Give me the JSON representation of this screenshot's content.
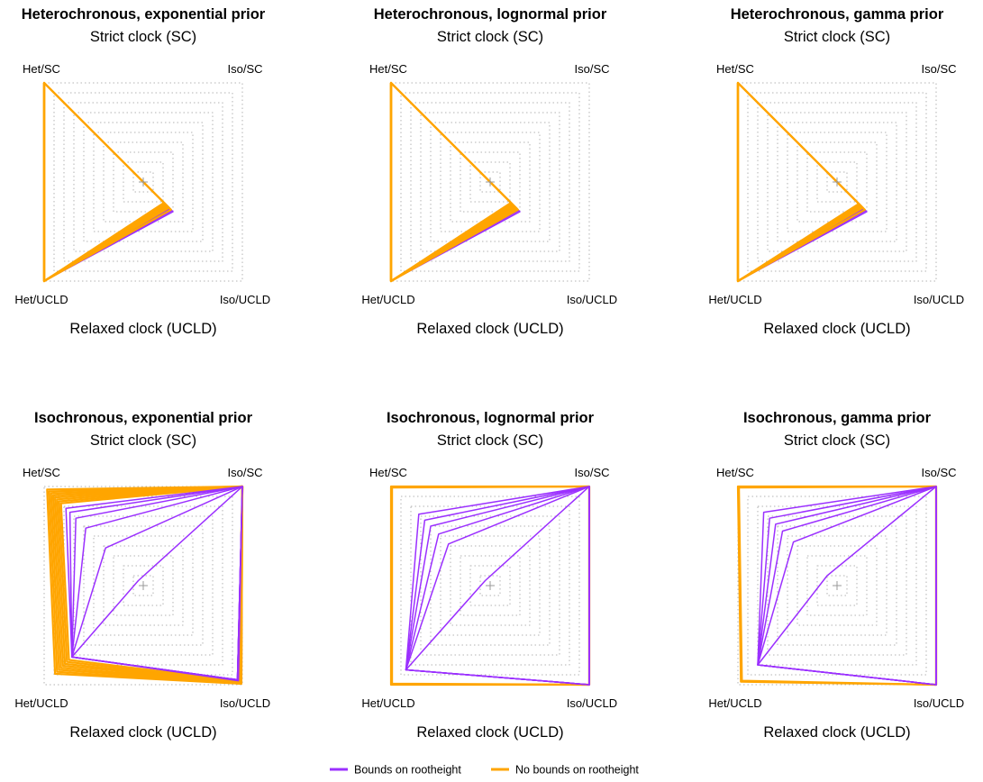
{
  "chart_data": {
    "type": "radar-grid",
    "panels": [
      {
        "title": "Heterochronous, exponential prior",
        "subtitle": "Strict clock (SC)",
        "xlabel": "Relaxed clock (UCLD)",
        "corner_labels": {
          "top_left": "Het/SC",
          "top_right": "Iso/SC",
          "bottom_left": "Het/UCLD",
          "bottom_right": "Iso/UCLD"
        },
        "axes_order": [
          "Het/SC",
          "Iso/SC",
          "Iso/UCLD",
          "Het/UCLD"
        ],
        "range": [
          0,
          1
        ],
        "grid_levels": 10,
        "series": [
          {
            "group": "bounds",
            "values": [
              1.0,
              0.0,
              0.3,
              1.0
            ]
          },
          {
            "group": "bounds",
            "values": [
              1.0,
              0.0,
              0.29,
              1.0
            ]
          },
          {
            "group": "bounds",
            "values": [
              1.0,
              0.0,
              0.27,
              1.0
            ]
          },
          {
            "group": "bounds",
            "values": [
              1.0,
              0.0,
              0.26,
              1.0
            ]
          },
          {
            "group": "bounds",
            "values": [
              1.0,
              0.0,
              0.25,
              1.0
            ]
          },
          {
            "group": "bounds",
            "values": [
              1.0,
              0.0,
              0.24,
              1.0
            ]
          },
          {
            "group": "no_bounds",
            "values": [
              1.0,
              0.0,
              0.28,
              1.0
            ]
          },
          {
            "group": "no_bounds",
            "values": [
              1.0,
              0.0,
              0.26,
              1.0
            ]
          },
          {
            "group": "no_bounds",
            "values": [
              1.0,
              0.0,
              0.25,
              1.0
            ]
          },
          {
            "group": "no_bounds",
            "values": [
              1.0,
              0.0,
              0.24,
              1.0
            ]
          },
          {
            "group": "no_bounds",
            "values": [
              1.0,
              0.0,
              0.23,
              1.0
            ]
          },
          {
            "group": "no_bounds",
            "values": [
              1.0,
              0.0,
              0.22,
              1.0
            ]
          },
          {
            "group": "no_bounds",
            "values": [
              1.0,
              0.0,
              0.21,
              1.0
            ]
          }
        ]
      },
      {
        "title": "Heterochronous, lognormal prior",
        "subtitle": "Strict clock (SC)",
        "xlabel": "Relaxed clock (UCLD)",
        "corner_labels": {
          "top_left": "Het/SC",
          "top_right": "Iso/SC",
          "bottom_left": "Het/UCLD",
          "bottom_right": "Iso/UCLD"
        },
        "axes_order": [
          "Het/SC",
          "Iso/SC",
          "Iso/UCLD",
          "Het/UCLD"
        ],
        "range": [
          0,
          1
        ],
        "grid_levels": 10,
        "series": [
          {
            "group": "bounds",
            "values": [
              1.0,
              0.0,
              0.3,
              1.0
            ]
          },
          {
            "group": "bounds",
            "values": [
              1.0,
              0.0,
              0.29,
              1.0
            ]
          },
          {
            "group": "bounds",
            "values": [
              1.0,
              0.0,
              0.28,
              1.0
            ]
          },
          {
            "group": "bounds",
            "values": [
              1.0,
              0.0,
              0.27,
              1.0
            ]
          },
          {
            "group": "bounds",
            "values": [
              1.0,
              0.0,
              0.26,
              1.0
            ]
          },
          {
            "group": "no_bounds",
            "values": [
              1.0,
              0.0,
              0.28,
              1.0
            ]
          },
          {
            "group": "no_bounds",
            "values": [
              1.0,
              0.0,
              0.27,
              1.0
            ]
          },
          {
            "group": "no_bounds",
            "values": [
              1.0,
              0.0,
              0.26,
              1.0
            ]
          },
          {
            "group": "no_bounds",
            "values": [
              1.0,
              0.0,
              0.25,
              1.0
            ]
          },
          {
            "group": "no_bounds",
            "values": [
              1.0,
              0.0,
              0.24,
              1.0
            ]
          },
          {
            "group": "no_bounds",
            "values": [
              1.0,
              0.0,
              0.23,
              1.0
            ]
          },
          {
            "group": "no_bounds",
            "values": [
              1.0,
              0.0,
              0.22,
              1.0
            ]
          },
          {
            "group": "no_bounds",
            "values": [
              1.0,
              0.0,
              0.21,
              1.0
            ]
          }
        ]
      },
      {
        "title": "Heterochronous, gamma prior",
        "subtitle": "Strict clock (SC)",
        "xlabel": "Relaxed clock (UCLD)",
        "corner_labels": {
          "top_left": "Het/SC",
          "top_right": "Iso/SC",
          "bottom_left": "Het/UCLD",
          "bottom_right": "Iso/UCLD"
        },
        "axes_order": [
          "Het/SC",
          "Iso/SC",
          "Iso/UCLD",
          "Het/UCLD"
        ],
        "range": [
          0,
          1
        ],
        "grid_levels": 10,
        "series": [
          {
            "group": "bounds",
            "values": [
              1.0,
              0.0,
              0.3,
              1.0
            ]
          },
          {
            "group": "bounds",
            "values": [
              1.0,
              0.0,
              0.29,
              1.0
            ]
          },
          {
            "group": "bounds",
            "values": [
              1.0,
              0.0,
              0.28,
              1.0
            ]
          },
          {
            "group": "bounds",
            "values": [
              1.0,
              0.0,
              0.27,
              1.0
            ]
          },
          {
            "group": "bounds",
            "values": [
              1.0,
              0.0,
              0.26,
              1.0
            ]
          },
          {
            "group": "bounds",
            "values": [
              1.0,
              0.0,
              0.25,
              1.0
            ]
          },
          {
            "group": "no_bounds",
            "values": [
              1.0,
              0.0,
              0.28,
              1.0
            ]
          },
          {
            "group": "no_bounds",
            "values": [
              1.0,
              0.0,
              0.26,
              1.0
            ]
          },
          {
            "group": "no_bounds",
            "values": [
              1.0,
              0.0,
              0.25,
              1.0
            ]
          },
          {
            "group": "no_bounds",
            "values": [
              1.0,
              0.0,
              0.24,
              1.0
            ]
          },
          {
            "group": "no_bounds",
            "values": [
              1.0,
              0.0,
              0.23,
              1.0
            ]
          },
          {
            "group": "no_bounds",
            "values": [
              1.0,
              0.0,
              0.22,
              1.0
            ]
          }
        ]
      },
      {
        "title": "Isochronous, exponential prior",
        "subtitle": "Strict clock (SC)",
        "xlabel": "Relaxed clock (UCLD)",
        "corner_labels": {
          "top_left": "Het/SC",
          "top_right": "Iso/SC",
          "bottom_left": "Het/UCLD",
          "bottom_right": "Iso/UCLD"
        },
        "axes_order": [
          "Het/SC",
          "Iso/SC",
          "Iso/UCLD",
          "Het/UCLD"
        ],
        "range": [
          0,
          1
        ],
        "grid_levels": 10,
        "series": [
          {
            "group": "no_bounds",
            "values": [
              0.97,
              1.0,
              0.99,
              0.89
            ]
          },
          {
            "group": "no_bounds",
            "values": [
              0.95,
              1.0,
              0.99,
              0.87
            ]
          },
          {
            "group": "no_bounds",
            "values": [
              0.93,
              1.0,
              0.98,
              0.85
            ]
          },
          {
            "group": "no_bounds",
            "values": [
              0.91,
              1.0,
              0.98,
              0.83
            ]
          },
          {
            "group": "no_bounds",
            "values": [
              0.89,
              1.0,
              0.97,
              0.81
            ]
          },
          {
            "group": "no_bounds",
            "values": [
              0.87,
              1.0,
              0.97,
              0.79
            ]
          },
          {
            "group": "no_bounds",
            "values": [
              0.85,
              1.0,
              0.96,
              0.77
            ]
          },
          {
            "group": "no_bounds",
            "values": [
              0.83,
              1.0,
              0.96,
              0.75
            ]
          },
          {
            "group": "bounds",
            "values": [
              0.78,
              1.0,
              0.96,
              0.72
            ]
          },
          {
            "group": "bounds",
            "values": [
              0.74,
              1.0,
              0.95,
              0.72
            ]
          },
          {
            "group": "bounds",
            "values": [
              0.68,
              1.0,
              0.95,
              0.72
            ]
          },
          {
            "group": "bounds",
            "values": [
              0.58,
              1.0,
              0.95,
              0.72
            ]
          },
          {
            "group": "bounds",
            "values": [
              0.38,
              1.0,
              0.95,
              0.72
            ]
          },
          {
            "group": "bounds",
            "values": [
              0.05,
              1.0,
              0.95,
              0.72
            ]
          }
        ]
      },
      {
        "title": "Isochronous, lognormal prior",
        "subtitle": "Strict clock (SC)",
        "xlabel": "Relaxed clock (UCLD)",
        "corner_labels": {
          "top_left": "Het/SC",
          "top_right": "Iso/SC",
          "bottom_left": "Het/UCLD",
          "bottom_right": "Iso/UCLD"
        },
        "axes_order": [
          "Het/SC",
          "Iso/SC",
          "Iso/UCLD",
          "Het/UCLD"
        ],
        "range": [
          0,
          1
        ],
        "grid_levels": 10,
        "series": [
          {
            "group": "no_bounds",
            "values": [
              1.0,
              1.0,
              1.0,
              1.0
            ]
          },
          {
            "group": "no_bounds",
            "values": [
              0.99,
              1.0,
              1.0,
              0.99
            ]
          },
          {
            "group": "bounds",
            "values": [
              0.72,
              1.0,
              1.0,
              0.85
            ]
          },
          {
            "group": "bounds",
            "values": [
              0.66,
              1.0,
              1.0,
              0.85
            ]
          },
          {
            "group": "bounds",
            "values": [
              0.6,
              1.0,
              1.0,
              0.85
            ]
          },
          {
            "group": "bounds",
            "values": [
              0.52,
              1.0,
              1.0,
              0.85
            ]
          },
          {
            "group": "bounds",
            "values": [
              0.42,
              1.0,
              1.0,
              0.85
            ]
          },
          {
            "group": "bounds",
            "values": [
              0.05,
              1.0,
              1.0,
              0.85
            ]
          }
        ]
      },
      {
        "title": "Isochronous, gamma prior",
        "subtitle": "Strict clock (SC)",
        "xlabel": "Relaxed clock (UCLD)",
        "corner_labels": {
          "top_left": "Het/SC",
          "top_right": "Iso/SC",
          "bottom_left": "Het/UCLD",
          "bottom_right": "Iso/UCLD"
        },
        "axes_order": [
          "Het/SC",
          "Iso/SC",
          "Iso/UCLD",
          "Het/UCLD"
        ],
        "range": [
          0,
          1
        ],
        "grid_levels": 10,
        "series": [
          {
            "group": "no_bounds",
            "values": [
              1.0,
              1.0,
              1.0,
              0.97
            ]
          },
          {
            "group": "no_bounds",
            "values": [
              0.99,
              1.0,
              1.0,
              0.96
            ]
          },
          {
            "group": "bounds",
            "values": [
              0.74,
              1.0,
              1.0,
              0.8
            ]
          },
          {
            "group": "bounds",
            "values": [
              0.68,
              1.0,
              1.0,
              0.8
            ]
          },
          {
            "group": "bounds",
            "values": [
              0.62,
              1.0,
              1.0,
              0.8
            ]
          },
          {
            "group": "bounds",
            "values": [
              0.55,
              1.0,
              1.0,
              0.8
            ]
          },
          {
            "group": "bounds",
            "values": [
              0.44,
              1.0,
              1.0,
              0.8
            ]
          },
          {
            "group": "bounds",
            "values": [
              0.1,
              1.0,
              1.0,
              0.8
            ]
          }
        ]
      }
    ],
    "legend": {
      "placement": "bottom-center",
      "items": [
        {
          "key": "bounds",
          "label": "Bounds on rootheight",
          "color": "#9b30ff"
        },
        {
          "key": "no_bounds",
          "label": "No bounds on rootheight",
          "color": "#ffa500"
        }
      ]
    },
    "colors": {
      "bounds": "#9b30ff",
      "no_bounds": "#ffa500",
      "grid": "#b3b3b3",
      "center_marker": "#999999"
    }
  }
}
